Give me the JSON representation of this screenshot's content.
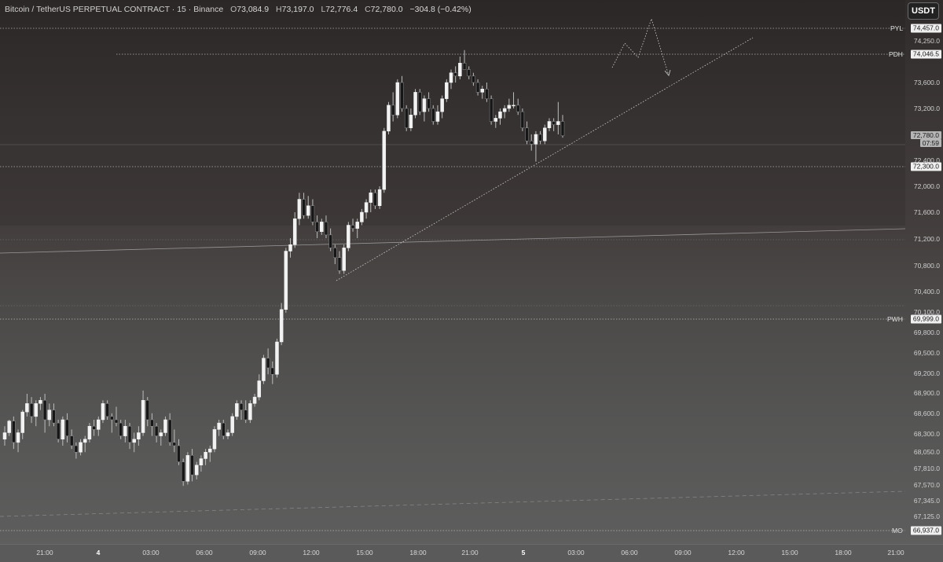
{
  "header": {
    "symbol": "Bitcoin / TetherUS PERPETUAL CONTRACT · 15 · Binance",
    "o_label": "O",
    "o_value": "73,084.9",
    "h_label": "H",
    "h_value": "73,197.0",
    "l_label": "L",
    "l_value": "72,776.4",
    "c_label": "C",
    "c_value": "72,780.0",
    "change": "−304.8 (−0.42%)"
  },
  "currency_button": "USDT",
  "price_axis": {
    "ticks": [
      "74,250.0",
      "73,600.0",
      "73,200.0",
      "72,400.0",
      "72,000.0",
      "71,600.0",
      "71,200.0",
      "70,800.0",
      "70,400.0",
      "70,100.0",
      "69,800.0",
      "69,500.0",
      "69,200.0",
      "68,900.0",
      "68,600.0",
      "68,300.0",
      "68,050.0",
      "67,810.0",
      "67,570.0",
      "67,345.0",
      "67,125.0"
    ],
    "current_price": "72,780.0",
    "countdown": "07:59"
  },
  "levels": [
    {
      "label": "PYL",
      "price": "74,457.0"
    },
    {
      "label": "PDH",
      "price": "74,046.5"
    },
    {
      "label": "",
      "price": "72,300.0"
    },
    {
      "label": "PWH",
      "price": "69,999.0"
    },
    {
      "label": "MO",
      "price": "66,937.0"
    }
  ],
  "time_axis": {
    "ticks": [
      "21:00",
      "4",
      "03:00",
      "06:00",
      "09:00",
      "12:00",
      "15:00",
      "18:00",
      "21:00",
      "5",
      "03:00",
      "06:00",
      "09:00",
      "12:00",
      "15:00",
      "18:00",
      "21:00"
    ]
  },
  "colors": {
    "up_candle": "#f2f2f2",
    "down_candle": "#161616",
    "wick": "#bdbdbd",
    "level_line": "#cfcfcf"
  },
  "candles": [
    [
      68100,
      68300,
      68000,
      68200
    ],
    [
      68200,
      68400,
      68150,
      68380
    ],
    [
      68380,
      68450,
      67950,
      68050
    ],
    [
      68050,
      68250,
      67900,
      68200
    ],
    [
      68200,
      68550,
      68100,
      68520
    ],
    [
      68520,
      68800,
      68450,
      68650
    ],
    [
      68650,
      68750,
      68350,
      68450
    ],
    [
      68450,
      68700,
      68300,
      68650
    ],
    [
      68650,
      68750,
      68550,
      68700
    ],
    [
      68700,
      68800,
      68200,
      68400
    ],
    [
      68400,
      68650,
      68300,
      68550
    ],
    [
      68550,
      68650,
      68300,
      68350
    ],
    [
      68350,
      68400,
      68050,
      68100
    ],
    [
      68100,
      68450,
      68000,
      68400
    ],
    [
      68400,
      68500,
      68050,
      68150
    ],
    [
      68150,
      68250,
      67950,
      68000
    ],
    [
      68000,
      68050,
      67800,
      67900
    ],
    [
      67900,
      68100,
      67850,
      68050
    ],
    [
      68050,
      68150,
      67900,
      68100
    ],
    [
      68100,
      68350,
      68050,
      68300
    ],
    [
      68300,
      68400,
      68150,
      68250
    ],
    [
      68250,
      68450,
      68150,
      68400
    ],
    [
      68400,
      68700,
      68350,
      68650
    ],
    [
      68650,
      68700,
      68400,
      68450
    ],
    [
      68450,
      68500,
      68200,
      68400
    ],
    [
      68400,
      68600,
      68300,
      68350
    ],
    [
      68350,
      68400,
      68100,
      68150
    ],
    [
      68150,
      68400,
      68050,
      68300
    ],
    [
      68300,
      68350,
      67950,
      68050
    ],
    [
      68050,
      68200,
      67900,
      68100
    ],
    [
      68100,
      68300,
      68000,
      68200
    ],
    [
      68200,
      68850,
      68150,
      68700
    ],
    [
      68700,
      68750,
      68300,
      68400
    ],
    [
      68400,
      68500,
      68150,
      68300
    ],
    [
      68300,
      68350,
      68050,
      68150
    ],
    [
      68150,
      68250,
      68000,
      68200
    ],
    [
      68200,
      68450,
      68150,
      68400
    ],
    [
      68400,
      68500,
      68000,
      68050
    ],
    [
      68050,
      68250,
      67900,
      68000
    ],
    [
      68000,
      68100,
      67700,
      67750
    ],
    [
      67750,
      67800,
      67380,
      67450
    ],
    [
      67450,
      67900,
      67400,
      67850
    ],
    [
      67850,
      67950,
      67450,
      67550
    ],
    [
      67550,
      67750,
      67480,
      67700
    ],
    [
      67700,
      67850,
      67600,
      67800
    ],
    [
      67800,
      67950,
      67700,
      67900
    ],
    [
      67900,
      68000,
      67750,
      67950
    ],
    [
      67950,
      68300,
      67900,
      68250
    ],
    [
      68250,
      68400,
      68150,
      68350
    ],
    [
      68350,
      68400,
      68100,
      68150
    ],
    [
      68150,
      68250,
      68100,
      68200
    ],
    [
      68200,
      68500,
      68150,
      68450
    ],
    [
      68450,
      68700,
      68400,
      68650
    ],
    [
      68650,
      68700,
      68400,
      68550
    ],
    [
      68550,
      68700,
      68350,
      68400
    ],
    [
      68400,
      68700,
      68350,
      68650
    ],
    [
      68650,
      68800,
      68600,
      68750
    ],
    [
      68750,
      69100,
      68700,
      69000
    ],
    [
      69000,
      69400,
      68950,
      69350
    ],
    [
      69350,
      69500,
      69100,
      69200
    ],
    [
      69200,
      69300,
      68950,
      69100
    ],
    [
      69100,
      69650,
      69050,
      69600
    ],
    [
      69600,
      70200,
      69550,
      70100
    ],
    [
      70100,
      71050,
      70050,
      71000
    ],
    [
      71000,
      71200,
      70900,
      71100
    ],
    [
      71100,
      71600,
      71050,
      71500
    ],
    [
      71500,
      71900,
      71400,
      71800
    ],
    [
      71800,
      71900,
      71500,
      71550
    ],
    [
      71550,
      71850,
      71500,
      71700
    ],
    [
      71700,
      71800,
      71400,
      71450
    ],
    [
      71450,
      71550,
      71200,
      71300
    ],
    [
      71300,
      71500,
      71250,
      71450
    ],
    [
      71450,
      71550,
      71200,
      71250
    ],
    [
      71250,
      71350,
      71000,
      71050
    ],
    [
      71050,
      71100,
      70800,
      70900
    ],
    [
      70900,
      71000,
      70650,
      70700
    ],
    [
      70700,
      71100,
      70650,
      71050
    ],
    [
      71050,
      71450,
      71000,
      71400
    ],
    [
      71400,
      71500,
      71300,
      71350
    ],
    [
      71350,
      71500,
      71200,
      71450
    ],
    [
      71450,
      71650,
      71400,
      71600
    ],
    [
      71600,
      71800,
      71500,
      71750
    ],
    [
      71750,
      71950,
      71600,
      71900
    ],
    [
      71900,
      71950,
      71650,
      71700
    ],
    [
      71700,
      72000,
      71650,
      71950
    ],
    [
      71950,
      72900,
      71900,
      72850
    ],
    [
      72850,
      73300,
      72800,
      73250
    ],
    [
      73250,
      73450,
      73000,
      73100
    ],
    [
      73100,
      73650,
      73050,
      73600
    ],
    [
      73600,
      73700,
      73150,
      73200
    ],
    [
      73200,
      73250,
      72850,
      72900
    ],
    [
      72900,
      73200,
      72850,
      73100
    ],
    [
      73100,
      73500,
      73050,
      73450
    ],
    [
      73450,
      73500,
      73100,
      73150
    ],
    [
      73150,
      73400,
      73000,
      73350
    ],
    [
      73350,
      73450,
      73150,
      73200
    ],
    [
      73200,
      73250,
      72950,
      73000
    ],
    [
      73000,
      73250,
      72950,
      73150
    ],
    [
      73150,
      73400,
      73050,
      73350
    ],
    [
      73350,
      73650,
      73300,
      73600
    ],
    [
      73600,
      73800,
      73500,
      73750
    ],
    [
      73750,
      73850,
      73600,
      73700
    ],
    [
      73700,
      74000,
      73650,
      73900
    ],
    [
      73900,
      74100,
      73800,
      73800
    ],
    [
      73800,
      73850,
      73650,
      73700
    ],
    [
      73700,
      73750,
      73550,
      73600
    ],
    [
      73600,
      73650,
      73400,
      73450
    ],
    [
      73450,
      73550,
      73350,
      73500
    ],
    [
      73500,
      73600,
      73300,
      73350
    ],
    [
      73350,
      73400,
      72950,
      73000
    ],
    [
      73000,
      73100,
      72900,
      73050
    ],
    [
      73050,
      73200,
      72950,
      73150
    ],
    [
      73150,
      73250,
      73050,
      73200
    ],
    [
      73200,
      73350,
      73150,
      73250
    ],
    [
      73250,
      73450,
      73200,
      73250
    ],
    [
      73250,
      73350,
      73100,
      73150
    ],
    [
      73150,
      73200,
      72850,
      72900
    ],
    [
      72900,
      73000,
      72650,
      72700
    ],
    [
      72700,
      72800,
      72550,
      72650
    ],
    [
      72650,
      72850,
      72380,
      72800
    ],
    [
      72800,
      72850,
      72650,
      72700
    ],
    [
      72700,
      72950,
      72650,
      72900
    ],
    [
      72900,
      73050,
      72850,
      73000
    ],
    [
      73000,
      73050,
      72850,
      72950
    ],
    [
      72950,
      73300,
      72800,
      73000
    ],
    [
      73000,
      73100,
      72750,
      72780
    ]
  ]
}
